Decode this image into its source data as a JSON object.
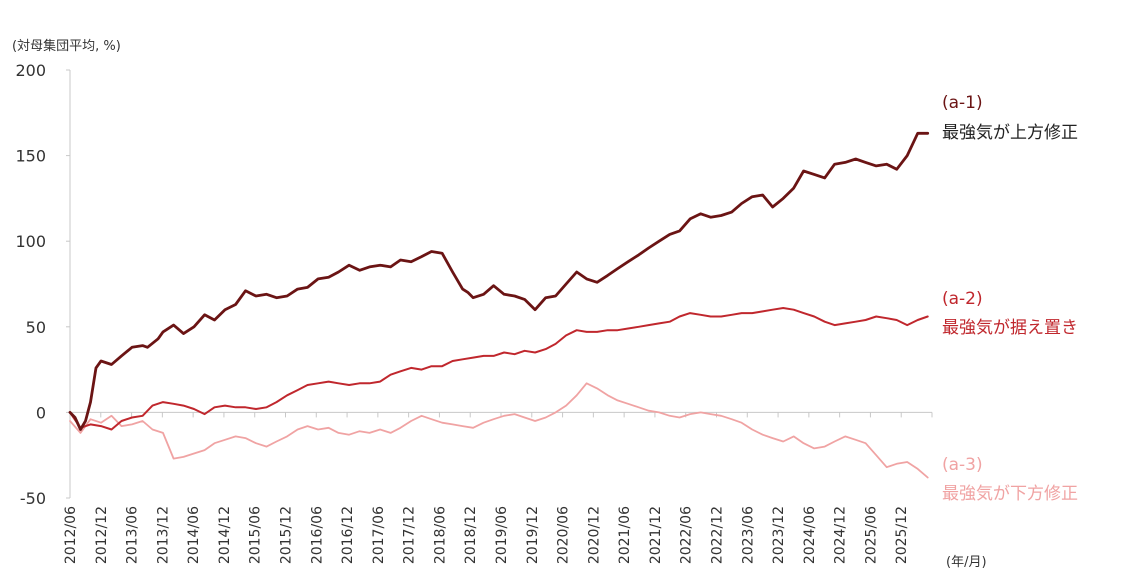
{
  "chart_data": {
    "type": "line",
    "y_unit_label": "(対母集団平均, %)",
    "x_unit_label": "(年/月)",
    "ylim": [
      -50,
      200
    ],
    "y_ticks": [
      200,
      150,
      100,
      50,
      0,
      -50
    ],
    "x_range": [
      2012.5,
      2026.4
    ],
    "x_tick_labels": [
      "2012/06",
      "2012/12",
      "2013/06",
      "2013/12",
      "2014/06",
      "2014/12",
      "2015/06",
      "2015/12",
      "2016/06",
      "2016/12",
      "2017/06",
      "2017/12",
      "2018/06",
      "2018/12",
      "2019/06",
      "2019/12",
      "2020/06",
      "2020/12",
      "2021/06",
      "2021/12",
      "2022/06",
      "2022/12",
      "2023/06",
      "2023/12",
      "2024/06",
      "2024/12",
      "2025/06",
      "2025/12"
    ],
    "grid": false,
    "legend": "labels-at-right",
    "colors": {
      "a1": "#6b1414",
      "a2": "#c0272d",
      "a3": "#f0a3a3",
      "axis": "#c8c8c8"
    },
    "series": [
      {
        "key": "a1",
        "name": "最強気が上方修正",
        "label_id": "(a-1)",
        "x": [
          2012.5,
          2012.58,
          2012.67,
          2012.75,
          2012.83,
          2012.92,
          2013.0,
          2013.17,
          2013.33,
          2013.5,
          2013.67,
          2013.75,
          2013.92,
          2014.0,
          2014.17,
          2014.33,
          2014.5,
          2014.67,
          2014.83,
          2015.0,
          2015.17,
          2015.33,
          2015.5,
          2015.67,
          2015.83,
          2016.0,
          2016.17,
          2016.33,
          2016.5,
          2016.67,
          2016.83,
          2017.0,
          2017.17,
          2017.33,
          2017.5,
          2017.67,
          2017.83,
          2018.0,
          2018.17,
          2018.33,
          2018.5,
          2018.67,
          2018.83,
          2018.92,
          2019.0,
          2019.17,
          2019.33,
          2019.5,
          2019.67,
          2019.83,
          2020.0,
          2020.17,
          2020.33,
          2020.5,
          2020.67,
          2020.83,
          2021.0,
          2021.17,
          2021.33,
          2021.5,
          2021.67,
          2021.83,
          2022.0,
          2022.17,
          2022.33,
          2022.5,
          2022.67,
          2022.83,
          2023.0,
          2023.17,
          2023.33,
          2023.5,
          2023.67,
          2023.83,
          2024.0,
          2024.17,
          2024.33,
          2024.5,
          2024.67,
          2024.83,
          2025.0,
          2025.17,
          2025.33,
          2025.5,
          2025.67,
          2025.83,
          2026.0,
          2026.17,
          2026.33
        ],
        "values": [
          0,
          -3,
          -10,
          -5,
          6,
          26,
          30,
          28,
          33,
          38,
          39,
          38,
          43,
          47,
          51,
          46,
          50,
          57,
          54,
          60,
          63,
          71,
          68,
          69,
          67,
          68,
          72,
          73,
          78,
          79,
          82,
          86,
          83,
          85,
          86,
          85,
          89,
          88,
          91,
          94,
          93,
          82,
          72,
          70,
          67,
          69,
          74,
          69,
          68,
          66,
          60,
          67,
          68,
          75,
          82,
          78,
          76,
          80,
          84,
          88,
          92,
          96,
          100,
          104,
          106,
          113,
          116,
          114,
          115,
          117,
          122,
          126,
          127,
          120,
          125,
          131,
          141,
          139,
          137,
          145,
          146,
          148,
          146,
          144,
          145,
          142,
          150,
          163,
          163
        ],
        "label_value": 163
      },
      {
        "key": "a2",
        "name": "最強気が据え置き",
        "label_id": "(a-2)",
        "x": [
          2012.5,
          2012.67,
          2012.83,
          2013.0,
          2013.17,
          2013.33,
          2013.5,
          2013.67,
          2013.83,
          2014.0,
          2014.17,
          2014.33,
          2014.5,
          2014.67,
          2014.83,
          2015.0,
          2015.17,
          2015.33,
          2015.5,
          2015.67,
          2015.83,
          2016.0,
          2016.17,
          2016.33,
          2016.5,
          2016.67,
          2016.83,
          2017.0,
          2017.17,
          2017.33,
          2017.5,
          2017.67,
          2017.83,
          2018.0,
          2018.17,
          2018.33,
          2018.5,
          2018.67,
          2018.83,
          2019.0,
          2019.17,
          2019.33,
          2019.5,
          2019.67,
          2019.83,
          2020.0,
          2020.17,
          2020.33,
          2020.5,
          2020.67,
          2020.83,
          2021.0,
          2021.17,
          2021.33,
          2021.5,
          2021.67,
          2021.83,
          2022.0,
          2022.17,
          2022.33,
          2022.5,
          2022.67,
          2022.83,
          2023.0,
          2023.17,
          2023.33,
          2023.5,
          2023.67,
          2023.83,
          2024.0,
          2024.17,
          2024.33,
          2024.5,
          2024.67,
          2024.83,
          2025.0,
          2025.17,
          2025.33,
          2025.5,
          2025.67,
          2025.83,
          2026.0,
          2026.17,
          2026.33
        ],
        "values": [
          0,
          -9,
          -7,
          -8,
          -10,
          -5,
          -3,
          -2,
          4,
          6,
          5,
          4,
          2,
          -1,
          3,
          4,
          3,
          3,
          2,
          3,
          6,
          10,
          13,
          16,
          17,
          18,
          17,
          16,
          17,
          17,
          18,
          22,
          24,
          26,
          25,
          27,
          27,
          30,
          31,
          32,
          33,
          33,
          35,
          34,
          36,
          35,
          37,
          40,
          45,
          48,
          47,
          47,
          48,
          48,
          49,
          50,
          51,
          52,
          53,
          56,
          58,
          57,
          56,
          56,
          57,
          58,
          58,
          59,
          60,
          61,
          60,
          58,
          56,
          53,
          51,
          52,
          53,
          54,
          56,
          55,
          54,
          51,
          54,
          56
        ],
        "label_value": 56
      },
      {
        "key": "a3",
        "name": "最強気が下方修正",
        "label_id": "(a-3)",
        "x": [
          2012.5,
          2012.67,
          2012.83,
          2013.0,
          2013.17,
          2013.33,
          2013.5,
          2013.67,
          2013.83,
          2014.0,
          2014.17,
          2014.33,
          2014.5,
          2014.67,
          2014.83,
          2015.0,
          2015.17,
          2015.33,
          2015.5,
          2015.67,
          2015.83,
          2016.0,
          2016.17,
          2016.33,
          2016.5,
          2016.67,
          2016.83,
          2017.0,
          2017.17,
          2017.33,
          2017.5,
          2017.67,
          2017.83,
          2018.0,
          2018.17,
          2018.33,
          2018.5,
          2018.67,
          2018.83,
          2019.0,
          2019.17,
          2019.33,
          2019.5,
          2019.67,
          2019.83,
          2020.0,
          2020.17,
          2020.33,
          2020.5,
          2020.67,
          2020.83,
          2021.0,
          2021.17,
          2021.33,
          2021.5,
          2021.67,
          2021.83,
          2022.0,
          2022.17,
          2022.33,
          2022.5,
          2022.67,
          2022.83,
          2023.0,
          2023.17,
          2023.33,
          2023.5,
          2023.67,
          2023.83,
          2024.0,
          2024.17,
          2024.33,
          2024.5,
          2024.67,
          2024.83,
          2025.0,
          2025.17,
          2025.33,
          2025.5,
          2025.67,
          2025.83,
          2026.0,
          2026.17,
          2026.33
        ],
        "values": [
          -5,
          -12,
          -4,
          -6,
          -2,
          -8,
          -7,
          -5,
          -10,
          -12,
          -27,
          -26,
          -24,
          -22,
          -18,
          -16,
          -14,
          -15,
          -18,
          -20,
          -17,
          -14,
          -10,
          -8,
          -10,
          -9,
          -12,
          -13,
          -11,
          -12,
          -10,
          -12,
          -9,
          -5,
          -2,
          -4,
          -6,
          -7,
          -8,
          -9,
          -6,
          -4,
          -2,
          -1,
          -3,
          -5,
          -3,
          0,
          4,
          10,
          17,
          14,
          10,
          7,
          5,
          3,
          1,
          0,
          -2,
          -3,
          -1,
          0,
          -1,
          -2,
          -4,
          -6,
          -10,
          -13,
          -15,
          -17,
          -14,
          -18,
          -21,
          -20,
          -17,
          -14,
          -16,
          -18,
          -25,
          -32,
          -30,
          -29,
          -33,
          -38
        ],
        "label_value": -38
      }
    ]
  }
}
